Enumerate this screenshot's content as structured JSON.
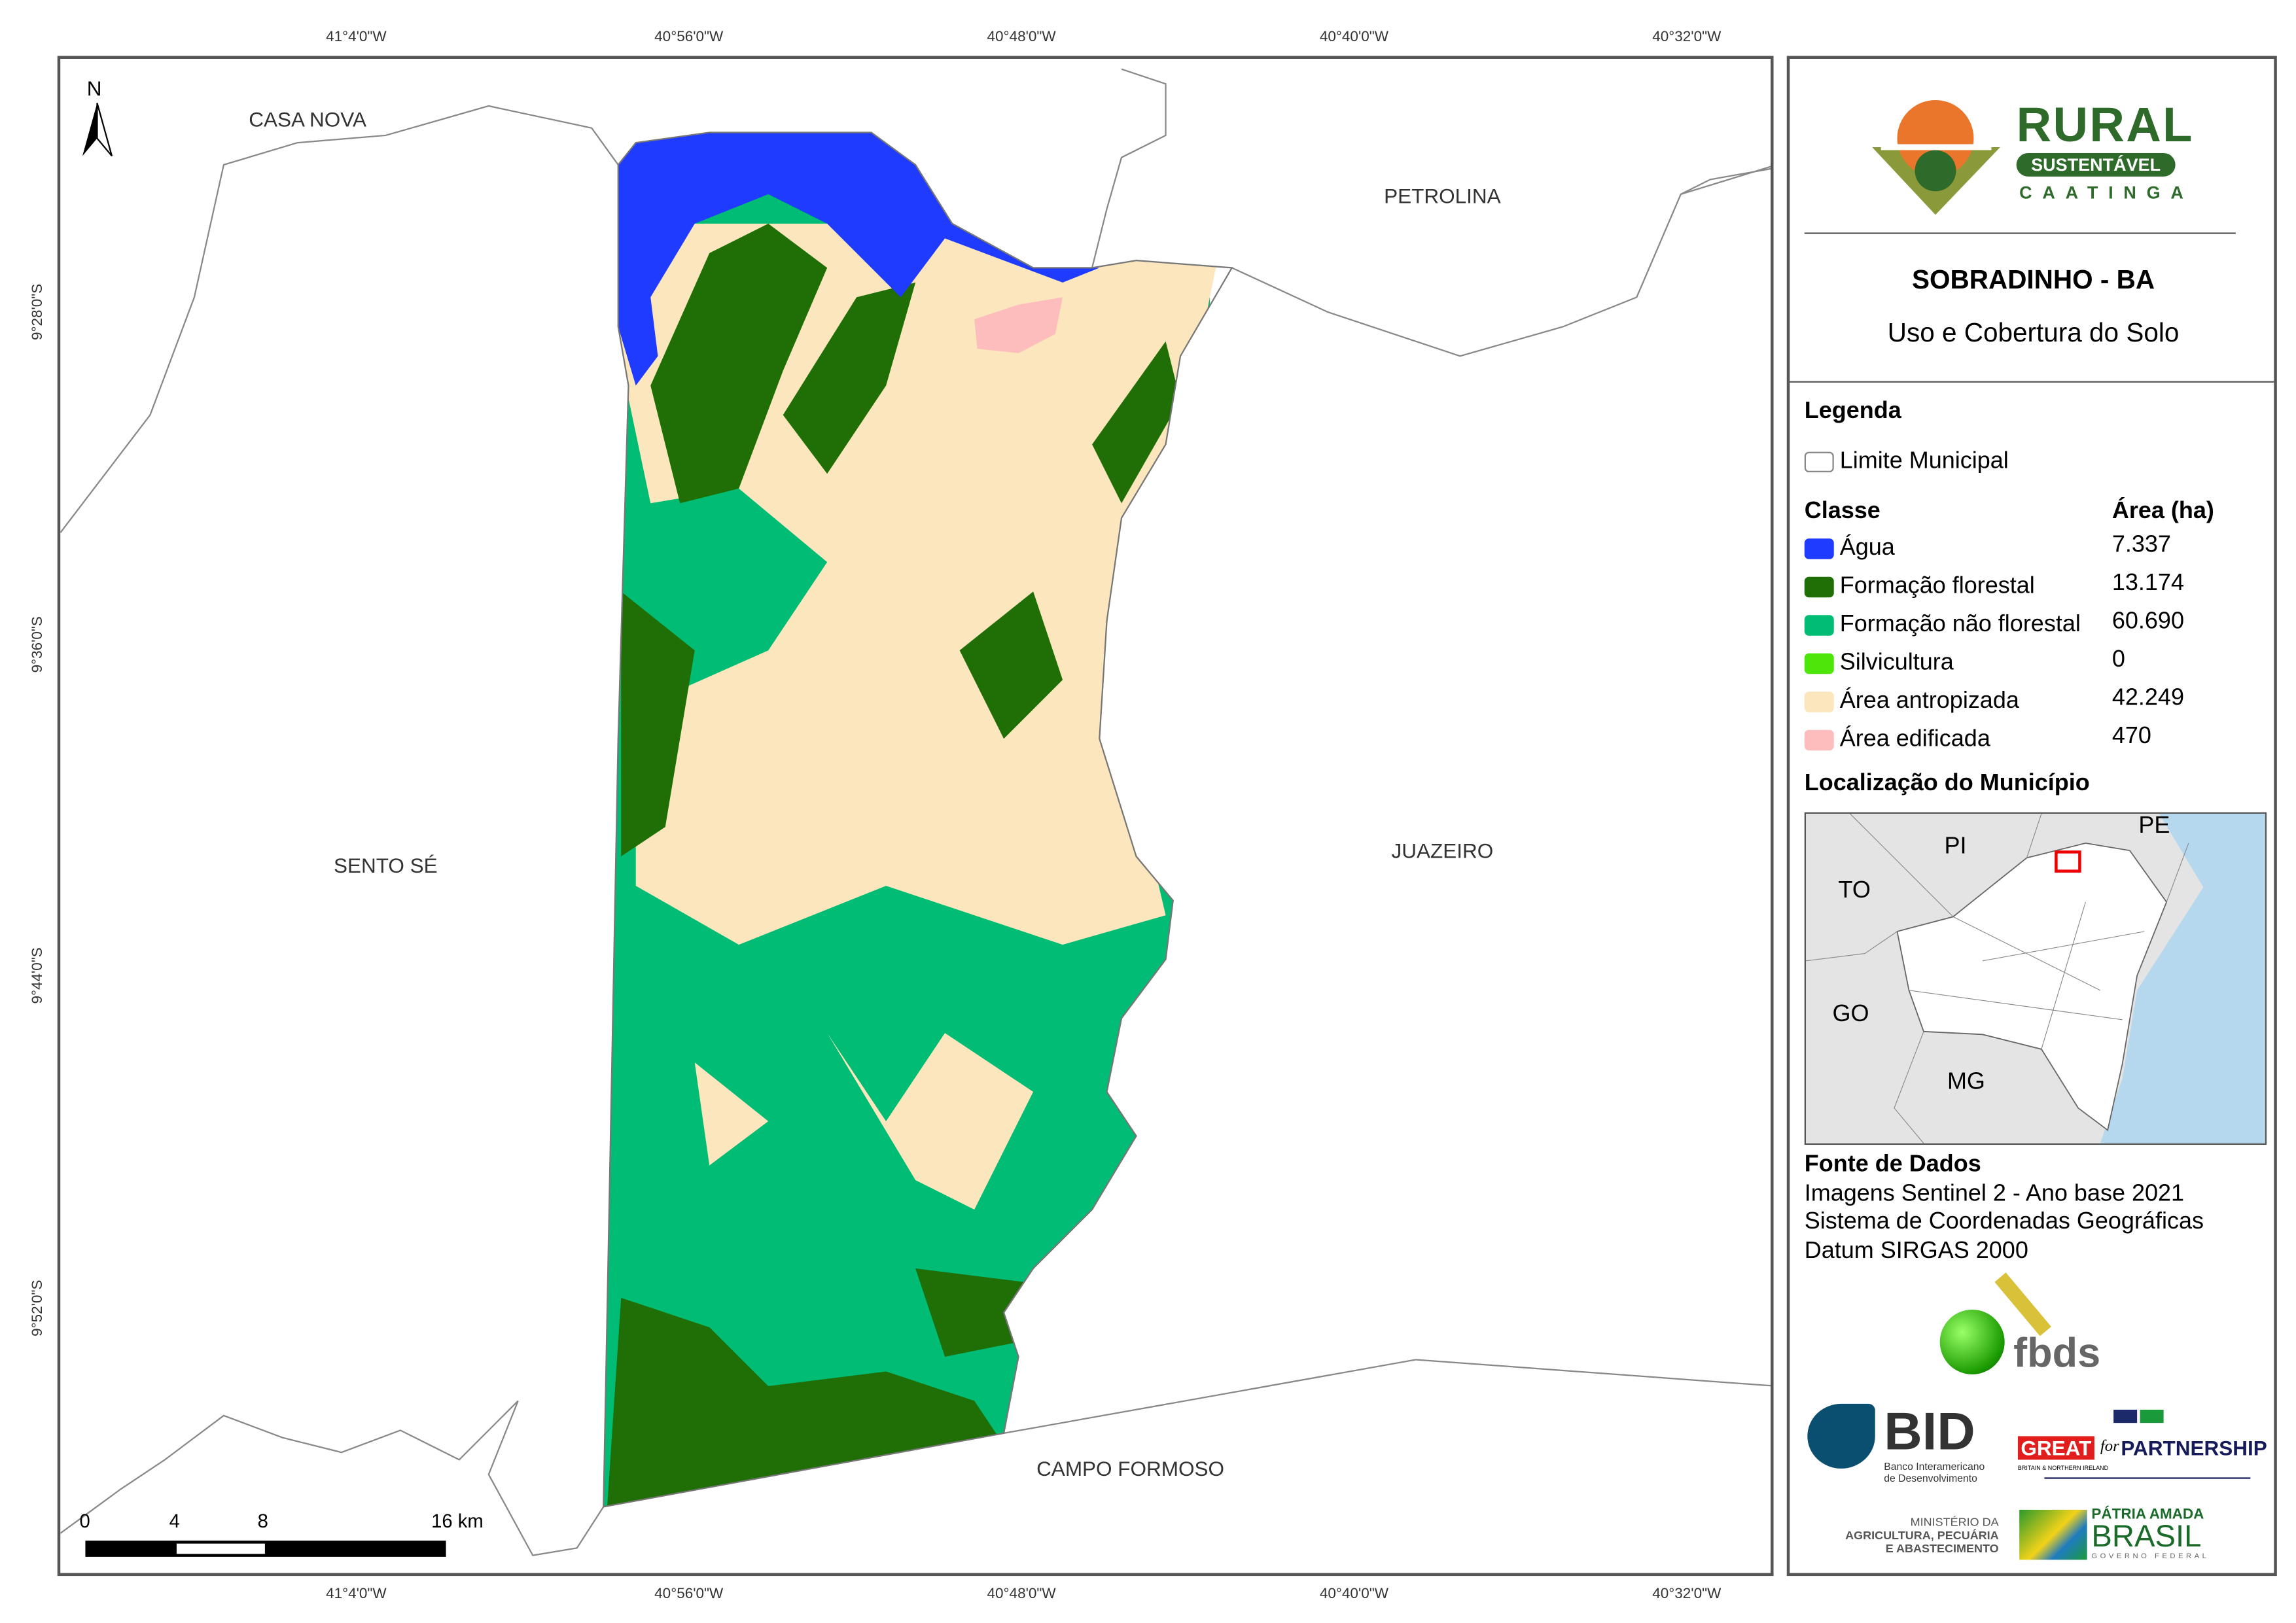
{
  "map": {
    "longitude_ticks": [
      "41°4'0\"W",
      "40°56'0\"W",
      "40°48'0\"W",
      "40°40'0\"W",
      "40°32'0\"W"
    ],
    "latitude_ticks": [
      "9°28'0\"S",
      "9°36'0\"S",
      "9°44'0\"S",
      "9°52'0\"S"
    ],
    "north_label": "N",
    "places": {
      "casa_nova": "CASA NOVA",
      "petrolina": "PETROLINA",
      "sento_se": "SENTO SÉ",
      "juazeiro": "JUAZEIRO",
      "campo_formoso": "CAMPO FORMOSO"
    },
    "scale_bar": {
      "labels": [
        "0",
        "4",
        "8",
        "16 km"
      ]
    }
  },
  "panel": {
    "logo": {
      "title": "RURAL",
      "subtitle": "SUSTENTÁVEL",
      "region": "CAATINGA"
    },
    "title": "SOBRADINHO - BA",
    "subtitle": "Uso e Cobertura do Solo",
    "legend": {
      "heading": "Legenda",
      "boundary_label": "Limite Municipal",
      "class_header": "Classe",
      "area_header": "Área (ha)",
      "classes": [
        {
          "label": "Água",
          "area": "7.337",
          "color": "#1E3BFF"
        },
        {
          "label": "Formação florestal",
          "area": "13.174",
          "color": "#1F6F06"
        },
        {
          "label": "Formação não florestal",
          "area": "60.690",
          "color": "#00BC74"
        },
        {
          "label": "Silvicultura",
          "area": "0",
          "color": "#4DE60A"
        },
        {
          "label": "Área antropizada",
          "area": "42.249",
          "color": "#FBE6BE"
        },
        {
          "label": "Área edificada",
          "area": "470",
          "color": "#FDBDBD"
        }
      ]
    },
    "location": {
      "heading": "Localização do Município",
      "states": [
        "PI",
        "PE",
        "TO",
        "GO",
        "MG"
      ]
    },
    "sources": {
      "heading": "Fonte de Dados",
      "lines": [
        "Imagens Sentinel 2 - Ano base 2021",
        "Sistema de Coordenadas Geográficas",
        "Datum SIRGAS 2000"
      ]
    },
    "logos": {
      "fbds": "fbds",
      "bid": "BID",
      "bid_name": [
        "Banco Interamericano",
        "de Desenvolvimento"
      ],
      "great": "GREAT",
      "great_for": "for",
      "partnership": "PARTNERSHIP",
      "great_sub": "BRITAIN & NORTHERN IRELAND",
      "ministry": [
        "MINISTÉRIO DA",
        "AGRICULTURA, PECUÁRIA",
        "E ABASTECIMENTO"
      ],
      "patria": "PÁTRIA AMADA",
      "brasil": "BRASIL",
      "governo": "GOVERNO FEDERAL"
    }
  }
}
